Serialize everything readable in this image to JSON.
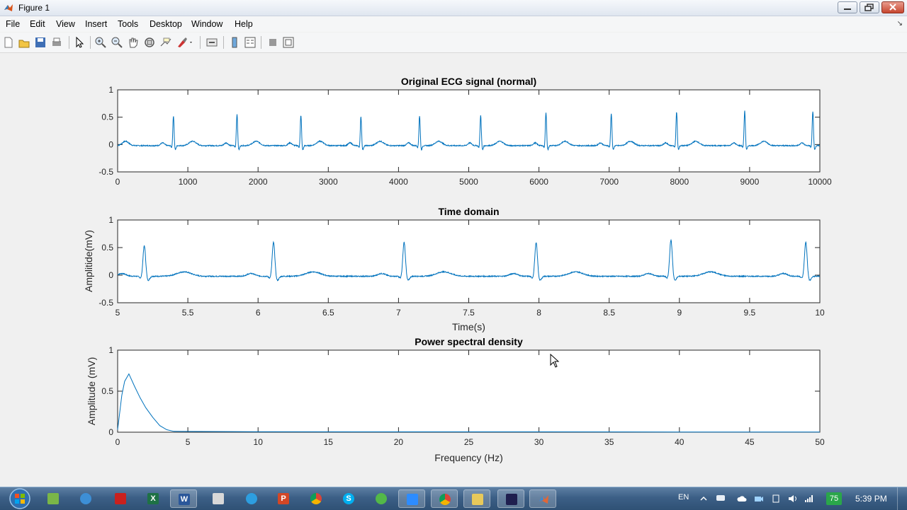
{
  "window": {
    "title": "Figure 1"
  },
  "menu": [
    "File",
    "Edit",
    "View",
    "Insert",
    "Tools",
    "Desktop",
    "Window",
    "Help"
  ],
  "plots": [
    {
      "title": "Original ECG signal (normal)",
      "xlabel": "",
      "ylabel": "",
      "xticks": [
        "0",
        "1000",
        "2000",
        "3000",
        "4000",
        "5000",
        "6000",
        "7000",
        "8000",
        "9000",
        "10000"
      ],
      "yticks": [
        "1",
        "0.5",
        "0",
        "-0.5"
      ]
    },
    {
      "title": "Time domain",
      "xlabel": "Time(s)",
      "ylabel": "Amplitide(mV)",
      "xticks": [
        "5",
        "5.5",
        "6",
        "6.5",
        "7",
        "7.5",
        "8",
        "8.5",
        "9",
        "9.5",
        "10"
      ],
      "yticks": [
        "1",
        "0.5",
        "0",
        "-0.5"
      ]
    },
    {
      "title": "Power spectral density",
      "xlabel": "Frequency (Hz)",
      "ylabel": "Amplitude (mV)",
      "xticks": [
        "0",
        "5",
        "10",
        "15",
        "20",
        "25",
        "30",
        "35",
        "40",
        "45",
        "50"
      ],
      "yticks": [
        "1",
        "0.5",
        "0"
      ]
    }
  ],
  "chart_data": [
    {
      "type": "line",
      "title": "Original ECG signal (normal)",
      "xlim": [
        0,
        10000
      ],
      "ylim": [
        -0.5,
        1
      ],
      "color": "#0072bd",
      "r_peaks_x": [
        795,
        1700,
        2610,
        3465,
        4300,
        5170,
        6100,
        7030,
        7960,
        8930,
        9900
      ],
      "r_peaks_y": [
        0.55,
        0.58,
        0.56,
        0.53,
        0.55,
        0.56,
        0.61,
        0.6,
        0.62,
        0.65,
        0.63
      ]
    },
    {
      "type": "line",
      "title": "Time domain",
      "xlabel": "Time(s)",
      "ylabel": "Amplitide(mV)",
      "xlim": [
        5,
        10
      ],
      "ylim": [
        -0.5,
        1
      ],
      "color": "#0072bd",
      "r_peaks_x": [
        5.19,
        6.11,
        7.04,
        7.98,
        8.94,
        9.9
      ],
      "r_peaks_y": [
        0.56,
        0.62,
        0.62,
        0.61,
        0.66,
        0.62
      ]
    },
    {
      "type": "line",
      "title": "Power spectral density",
      "xlabel": "Frequency (Hz)",
      "ylabel": "Amplitude (mV)",
      "xlim": [
        0,
        50
      ],
      "ylim": [
        0,
        1
      ],
      "color": "#0072bd",
      "x": [
        0,
        0.3,
        0.5,
        0.8,
        1.2,
        1.6,
        2.0,
        2.5,
        3.0,
        3.5,
        4.0,
        10,
        20,
        30,
        40,
        50
      ],
      "y": [
        0.03,
        0.45,
        0.62,
        0.71,
        0.56,
        0.42,
        0.3,
        0.18,
        0.08,
        0.03,
        0.01,
        0.005,
        0.004,
        0.004,
        0.003,
        0.003
      ]
    }
  ],
  "taskbar": {
    "language": "EN",
    "battery": "75",
    "time": "5:39 PM"
  }
}
